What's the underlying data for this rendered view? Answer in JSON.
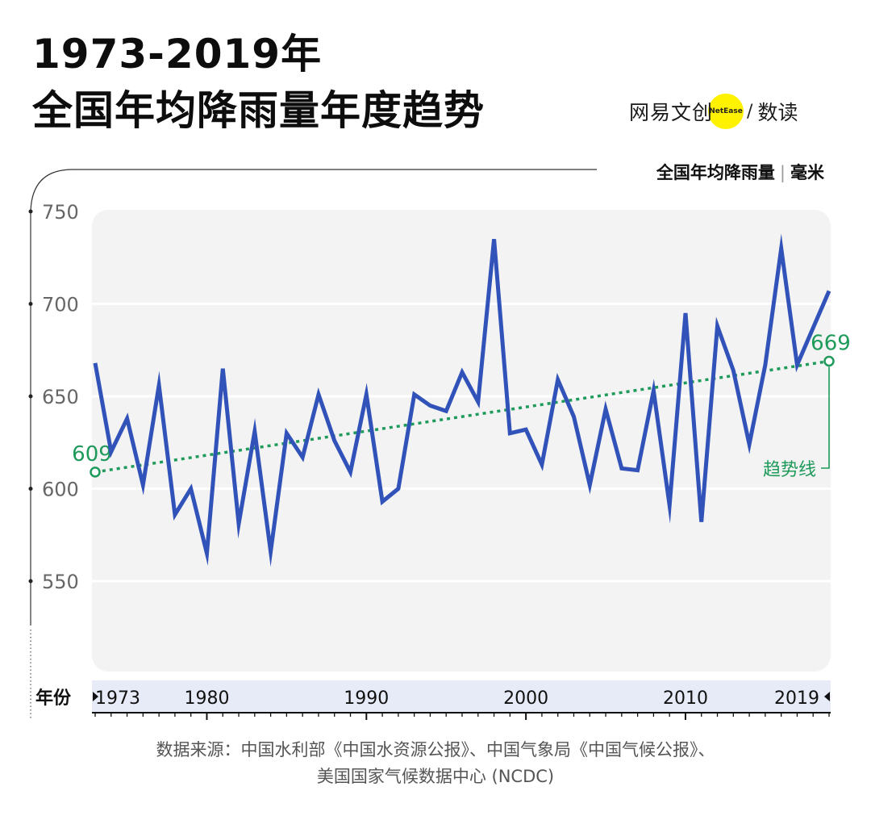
{
  "header": {
    "title_line1": "1973-2019年",
    "title_line2": "全国年均降雨量年度趋势"
  },
  "logo": {
    "brand_cn": "网易文创",
    "brand_en": "NetEase",
    "slash": "/",
    "product": "数读",
    "accent_color": "#fff200"
  },
  "unit": {
    "metric": "全国年均降雨量",
    "separator": "|",
    "unit": "毫米"
  },
  "colors": {
    "line": "#3152b8",
    "trend": "#1e9a5a",
    "plot_bg": "#f3f3f3",
    "axis_band": "#e7ebf7"
  },
  "chart_data": {
    "type": "line",
    "title": "全国年均降雨量年度趋势",
    "xlabel": "年份",
    "ylabel": "全国年均降雨量 | 毫米",
    "ylim": [
      500,
      750
    ],
    "yticks": [
      550,
      600,
      650,
      700,
      750
    ],
    "xticks": [
      1973,
      1980,
      1990,
      2000,
      2010,
      2019
    ],
    "grid": true,
    "x": [
      1973,
      1974,
      1975,
      1976,
      1977,
      1978,
      1979,
      1980,
      1981,
      1982,
      1983,
      1984,
      1985,
      1986,
      1987,
      1988,
      1989,
      1990,
      1991,
      1992,
      1993,
      1994,
      1995,
      1996,
      1997,
      1998,
      1999,
      2000,
      2001,
      2002,
      2003,
      2004,
      2005,
      2006,
      2007,
      2008,
      2009,
      2010,
      2011,
      2012,
      2013,
      2014,
      2015,
      2016,
      2017,
      2018,
      2019
    ],
    "series": [
      {
        "name": "全国年均降雨量",
        "values": [
          668,
          620,
          638,
          602,
          656,
          586,
          600,
          565,
          665,
          581,
          631,
          566,
          630,
          617,
          651,
          626,
          609,
          651,
          593,
          600,
          651,
          645,
          642,
          663,
          647,
          735,
          630,
          632,
          613,
          659,
          639,
          602,
          643,
          611,
          610,
          653,
          591,
          695,
          582,
          688,
          664,
          624,
          667,
          730,
          667,
          687,
          707
        ]
      }
    ],
    "trend": {
      "name": "趋势线",
      "start_year": 1973,
      "start_value": 609,
      "end_year": 2019,
      "end_value": 669,
      "start_label": "609",
      "end_label": "669"
    }
  },
  "source": {
    "line1": "数据来源：中国水利部《中国水资源公报》、中国气象局《中国气候公报》、",
    "line2": "美国国家气候数据中心 (NCDC)"
  }
}
